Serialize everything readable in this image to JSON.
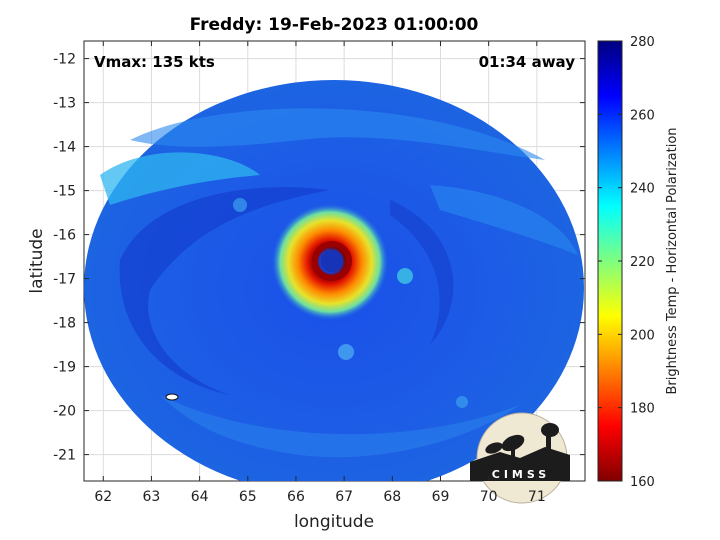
{
  "chart_data": {
    "type": "heatmap",
    "title": "Freddy: 19-Feb-2023 01:00:00",
    "xlabel": "longitude",
    "ylabel": "latitude",
    "xlim": [
      61.6,
      72
    ],
    "ylim": [
      -21.6,
      -11.6
    ],
    "x_ticks": [
      62,
      63,
      64,
      65,
      66,
      67,
      68,
      69,
      70,
      71
    ],
    "y_ticks": [
      -12,
      -13,
      -14,
      -15,
      -16,
      -17,
      -18,
      -19,
      -20,
      -21
    ],
    "grid": true,
    "annotations": {
      "vmax": "Vmax: 135 kts",
      "time_away": "01:34 away"
    },
    "swath_center": {
      "lon": 66.7,
      "lat": -16.65
    },
    "eye_center": {
      "lon": 66.65,
      "lat": -16.6
    },
    "colorbar": {
      "label": "Brightness Temp - Horizontal Polarization",
      "range": [
        160,
        280
      ],
      "ticks": [
        280,
        260,
        240,
        220,
        200,
        180,
        160
      ],
      "colormap": "jet"
    },
    "logo_text": "CIMSS"
  }
}
